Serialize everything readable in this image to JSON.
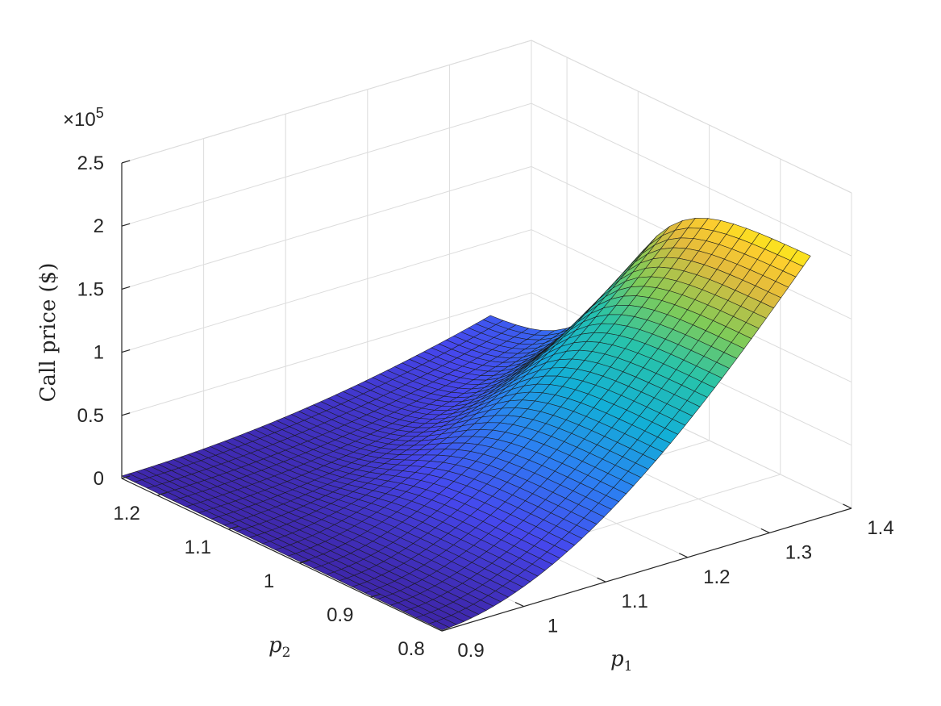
{
  "chart_data": {
    "type": "surface",
    "title": "",
    "xlabel": "p",
    "xlabel_sub": "1",
    "ylabel": "p",
    "ylabel_sub": "2",
    "zlabel": "Call price ($)",
    "z_exponent_base": "×10",
    "z_exponent_power": "5",
    "xlim": [
      0.9,
      1.4
    ],
    "ylim": [
      0.8,
      1.25
    ],
    "zlim": [
      0,
      250000
    ],
    "x_ticks": [
      0.9,
      1.0,
      1.1,
      1.2,
      1.3,
      1.4
    ],
    "x_tick_labels": [
      "0.9",
      "1",
      "1.1",
      "1.2",
      "1.3",
      "1.4"
    ],
    "y_ticks": [
      0.8,
      0.9,
      1.0,
      1.1,
      1.2
    ],
    "y_tick_labels": [
      "0.8",
      "0.9",
      "1",
      "1.1",
      "1.2"
    ],
    "z_ticks": [
      0,
      50000,
      100000,
      150000,
      200000,
      250000
    ],
    "z_tick_labels": [
      "0",
      "0.5",
      "1",
      "1.5",
      "2",
      "2.5"
    ],
    "grid": true,
    "colormap": "parula",
    "surface_x_range": [
      0.9,
      1.35
    ],
    "surface_y_range": [
      0.8,
      1.25
    ],
    "surface_values_at_p2_1.25": [
      {
        "p1": 0.9,
        "call": 2000
      },
      {
        "p1": 1.35,
        "call": 40000
      }
    ],
    "surface_values_at_p2_0.8": [
      {
        "p1": 0.9,
        "call": 500
      },
      {
        "p1": 1.35,
        "call": 202000
      }
    ],
    "grid_lines_x": 50,
    "grid_lines_y": 25
  }
}
